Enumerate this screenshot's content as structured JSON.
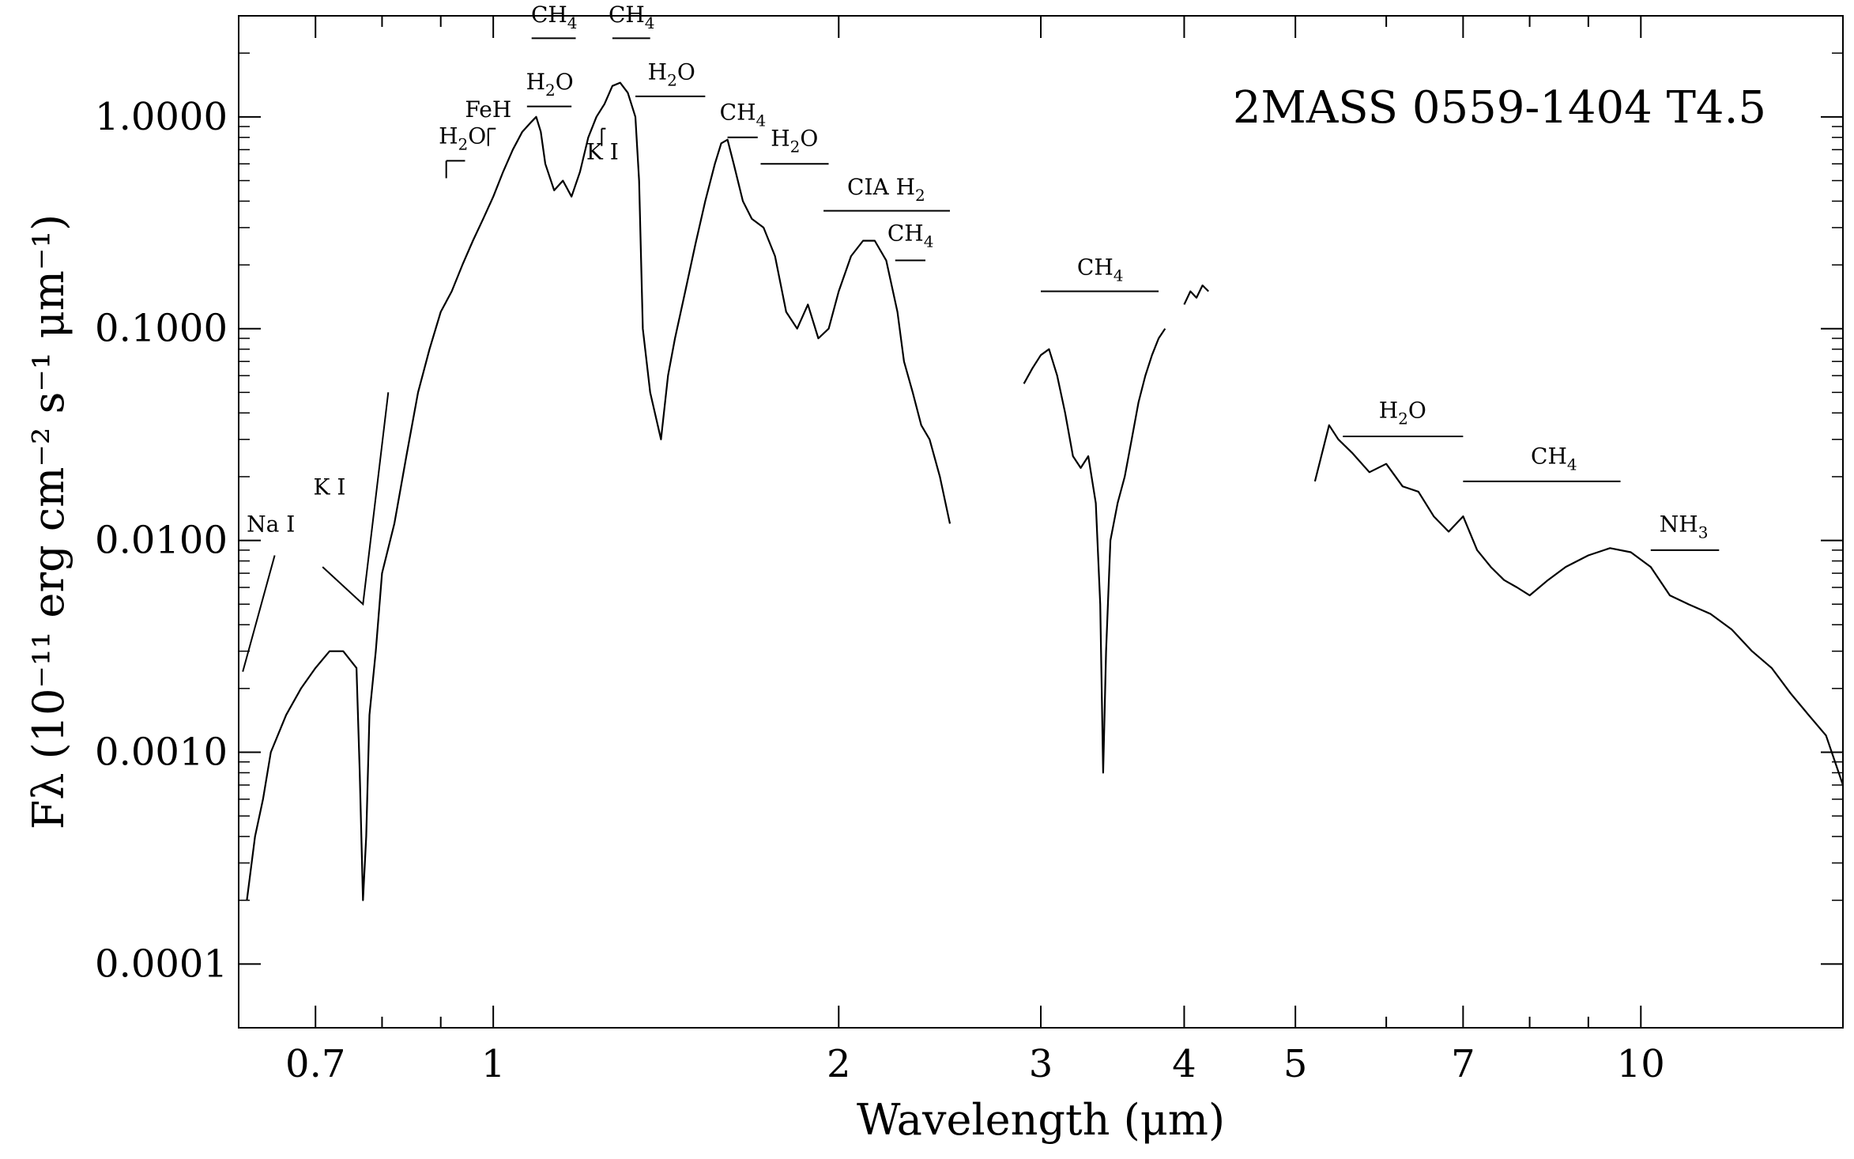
{
  "chart_data": {
    "type": "line",
    "title": "2MASS 0559-1404  T4.5",
    "xlabel": "Wavelength (μm)",
    "ylabel": "Fλ (10⁻¹¹ erg cm⁻² s⁻¹ μm⁻¹)",
    "x_scale": "log",
    "y_scale": "log",
    "xlim": [
      0.6,
      15
    ],
    "ylim": [
      5e-05,
      3
    ],
    "grid": false,
    "x_ticks": [
      {
        "value": 0.7,
        "label": "0.7"
      },
      {
        "value": 1,
        "label": "1"
      },
      {
        "value": 2,
        "label": "2"
      },
      {
        "value": 3,
        "label": "3"
      },
      {
        "value": 4,
        "label": "4"
      },
      {
        "value": 5,
        "label": "5"
      },
      {
        "value": 7,
        "label": "7"
      },
      {
        "value": 10,
        "label": "10"
      }
    ],
    "y_ticks": [
      {
        "value": 0.0001,
        "label": "0.0001"
      },
      {
        "value": 0.001,
        "label": "0.0010"
      },
      {
        "value": 0.01,
        "label": "0.0100"
      },
      {
        "value": 0.1,
        "label": "0.1000"
      },
      {
        "value": 1,
        "label": "1.0000"
      }
    ],
    "series": [
      {
        "segment": "optical-nir",
        "points": [
          [
            0.61,
            0.0002
          ],
          [
            0.62,
            0.0004
          ],
          [
            0.63,
            0.0006
          ],
          [
            0.64,
            0.001
          ],
          [
            0.66,
            0.0015
          ],
          [
            0.68,
            0.002
          ],
          [
            0.7,
            0.0025
          ],
          [
            0.72,
            0.003
          ],
          [
            0.74,
            0.003
          ],
          [
            0.76,
            0.0025
          ],
          [
            0.765,
            0.0008
          ],
          [
            0.77,
            0.0002
          ],
          [
            0.775,
            0.0004
          ],
          [
            0.78,
            0.0015
          ],
          [
            0.79,
            0.003
          ],
          [
            0.8,
            0.007
          ],
          [
            0.82,
            0.012
          ],
          [
            0.84,
            0.025
          ],
          [
            0.86,
            0.05
          ],
          [
            0.88,
            0.08
          ],
          [
            0.9,
            0.12
          ],
          [
            0.92,
            0.15
          ],
          [
            0.94,
            0.2
          ],
          [
            0.96,
            0.26
          ],
          [
            0.98,
            0.33
          ],
          [
            1.0,
            0.42
          ],
          [
            1.02,
            0.55
          ],
          [
            1.04,
            0.7
          ],
          [
            1.06,
            0.85
          ],
          [
            1.08,
            0.95
          ],
          [
            1.09,
            1.0
          ],
          [
            1.1,
            0.85
          ],
          [
            1.11,
            0.6
          ],
          [
            1.13,
            0.45
          ],
          [
            1.15,
            0.5
          ],
          [
            1.17,
            0.42
          ],
          [
            1.19,
            0.55
          ],
          [
            1.21,
            0.8
          ],
          [
            1.23,
            1.0
          ],
          [
            1.25,
            1.15
          ],
          [
            1.27,
            1.4
          ],
          [
            1.29,
            1.45
          ],
          [
            1.31,
            1.3
          ],
          [
            1.33,
            1.0
          ],
          [
            1.34,
            0.5
          ],
          [
            1.35,
            0.1
          ],
          [
            1.37,
            0.05
          ],
          [
            1.4,
            0.03
          ],
          [
            1.42,
            0.06
          ],
          [
            1.44,
            0.09
          ],
          [
            1.47,
            0.15
          ],
          [
            1.5,
            0.25
          ],
          [
            1.53,
            0.4
          ],
          [
            1.56,
            0.6
          ],
          [
            1.58,
            0.75
          ],
          [
            1.6,
            0.78
          ],
          [
            1.62,
            0.6
          ],
          [
            1.65,
            0.4
          ],
          [
            1.68,
            0.33
          ],
          [
            1.72,
            0.3
          ],
          [
            1.76,
            0.22
          ],
          [
            1.8,
            0.12
          ],
          [
            1.84,
            0.1
          ],
          [
            1.88,
            0.13
          ],
          [
            1.92,
            0.09
          ],
          [
            1.96,
            0.1
          ],
          [
            2.0,
            0.15
          ],
          [
            2.05,
            0.22
          ],
          [
            2.1,
            0.26
          ],
          [
            2.15,
            0.26
          ],
          [
            2.2,
            0.21
          ],
          [
            2.25,
            0.12
          ],
          [
            2.28,
            0.07
          ],
          [
            2.32,
            0.05
          ],
          [
            2.36,
            0.035
          ],
          [
            2.4,
            0.03
          ],
          [
            2.45,
            0.02
          ],
          [
            2.5,
            0.012
          ]
        ]
      },
      {
        "segment": "l-band",
        "points": [
          [
            2.9,
            0.055
          ],
          [
            2.95,
            0.065
          ],
          [
            3.0,
            0.075
          ],
          [
            3.05,
            0.08
          ],
          [
            3.1,
            0.06
          ],
          [
            3.15,
            0.04
          ],
          [
            3.2,
            0.025
          ],
          [
            3.25,
            0.022
          ],
          [
            3.3,
            0.025
          ],
          [
            3.35,
            0.015
          ],
          [
            3.38,
            0.005
          ],
          [
            3.4,
            0.0008
          ],
          [
            3.42,
            0.003
          ],
          [
            3.45,
            0.01
          ],
          [
            3.5,
            0.015
          ],
          [
            3.55,
            0.02
          ],
          [
            3.6,
            0.03
          ],
          [
            3.65,
            0.045
          ],
          [
            3.7,
            0.06
          ],
          [
            3.75,
            0.075
          ],
          [
            3.8,
            0.09
          ],
          [
            3.85,
            0.1
          ]
        ]
      },
      {
        "segment": "l-band-red",
        "points": [
          [
            4.0,
            0.13
          ],
          [
            4.05,
            0.15
          ],
          [
            4.1,
            0.14
          ],
          [
            4.15,
            0.16
          ],
          [
            4.2,
            0.15
          ]
        ]
      },
      {
        "segment": "mid-ir",
        "points": [
          [
            5.2,
            0.019
          ],
          [
            5.35,
            0.035
          ],
          [
            5.45,
            0.03
          ],
          [
            5.6,
            0.026
          ],
          [
            5.8,
            0.021
          ],
          [
            6.0,
            0.023
          ],
          [
            6.2,
            0.018
          ],
          [
            6.4,
            0.017
          ],
          [
            6.6,
            0.013
          ],
          [
            6.8,
            0.011
          ],
          [
            7.0,
            0.013
          ],
          [
            7.2,
            0.009
          ],
          [
            7.4,
            0.0075
          ],
          [
            7.6,
            0.0065
          ],
          [
            7.8,
            0.006
          ],
          [
            8.0,
            0.0055
          ],
          [
            8.3,
            0.0065
          ],
          [
            8.6,
            0.0075
          ],
          [
            9.0,
            0.0085
          ],
          [
            9.4,
            0.0092
          ],
          [
            9.8,
            0.0088
          ],
          [
            10.2,
            0.0075
          ],
          [
            10.6,
            0.0055
          ],
          [
            11.0,
            0.005
          ],
          [
            11.5,
            0.0045
          ],
          [
            12.0,
            0.0038
          ],
          [
            12.5,
            0.003
          ],
          [
            13.0,
            0.0025
          ],
          [
            13.5,
            0.0019
          ],
          [
            14.0,
            0.0015
          ],
          [
            14.5,
            0.0012
          ],
          [
            15.0,
            0.0007
          ]
        ]
      }
    ],
    "annotations": [
      {
        "id": "na-i",
        "text": "Na I",
        "x": 0.64,
        "y": 0.011,
        "line": [
          [
            0.605,
            0.0024
          ],
          [
            0.645,
            0.0085
          ]
        ]
      },
      {
        "id": "k-i-optical",
        "text": "K I",
        "x": 0.72,
        "y": 0.0165,
        "line": [
          [
            0.71,
            0.0075
          ],
          [
            0.77,
            0.005
          ],
          [
            0.81,
            0.05
          ]
        ]
      },
      {
        "id": "h2o-z",
        "text": "H2O",
        "x": 0.94,
        "y": 0.75,
        "bar": [
          0.91,
          0.945
        ],
        "bar_y": 0.62,
        "tick": true
      },
      {
        "id": "feh",
        "text": "FeH",
        "x": 0.99,
        "y": 1.0,
        "bar": [
          0.99,
          1.005
        ],
        "bar_y": 0.88,
        "tick": true
      },
      {
        "id": "h2o-j1",
        "text": "H2O",
        "x": 1.12,
        "y": 1.35,
        "bar": [
          1.07,
          1.17
        ],
        "bar_y": 1.12
      },
      {
        "id": "ch4-j1",
        "text": "CH4",
        "x": 1.13,
        "y": 2.8,
        "bar": [
          1.08,
          1.18
        ],
        "bar_y": 2.35
      },
      {
        "id": "k-i-j",
        "text": "K I",
        "x": 1.245,
        "y": 0.63,
        "bar": [
          1.243,
          1.253
        ],
        "bar_y": 0.88,
        "tick": true
      },
      {
        "id": "ch4-j2",
        "text": "CH4",
        "x": 1.32,
        "y": 2.8,
        "bar": [
          1.27,
          1.37
        ],
        "bar_y": 2.35
      },
      {
        "id": "h2o-j2",
        "text": "H2O",
        "x": 1.43,
        "y": 1.5,
        "bar": [
          1.33,
          1.53
        ],
        "bar_y": 1.25
      },
      {
        "id": "ch4-h",
        "text": "CH4",
        "x": 1.65,
        "y": 0.97,
        "bar": [
          1.6,
          1.7
        ],
        "bar_y": 0.8
      },
      {
        "id": "h2o-h",
        "text": "H2O",
        "x": 1.83,
        "y": 0.73,
        "bar": [
          1.71,
          1.96
        ],
        "bar_y": 0.6
      },
      {
        "id": "cia-h2",
        "text": "CIA H2",
        "x": 2.2,
        "y": 0.43,
        "bar": [
          1.94,
          2.5
        ],
        "bar_y": 0.36
      },
      {
        "id": "ch4-k",
        "text": "CH4",
        "x": 2.31,
        "y": 0.26,
        "bar": [
          2.24,
          2.38
        ],
        "bar_y": 0.21
      },
      {
        "id": "ch4-l",
        "text": "CH4",
        "x": 3.38,
        "y": 0.18,
        "bar": [
          3.0,
          3.8
        ],
        "bar_y": 0.15
      },
      {
        "id": "h2o-m",
        "text": "H2O",
        "x": 6.2,
        "y": 0.038,
        "bar": [
          5.5,
          7.0
        ],
        "bar_y": 0.031
      },
      {
        "id": "ch4-m",
        "text": "CH4",
        "x": 8.4,
        "y": 0.023,
        "bar": [
          7.0,
          9.6
        ],
        "bar_y": 0.019
      },
      {
        "id": "nh3",
        "text": "NH3",
        "x": 10.9,
        "y": 0.011,
        "bar": [
          10.2,
          11.7
        ],
        "bar_y": 0.009
      }
    ]
  }
}
